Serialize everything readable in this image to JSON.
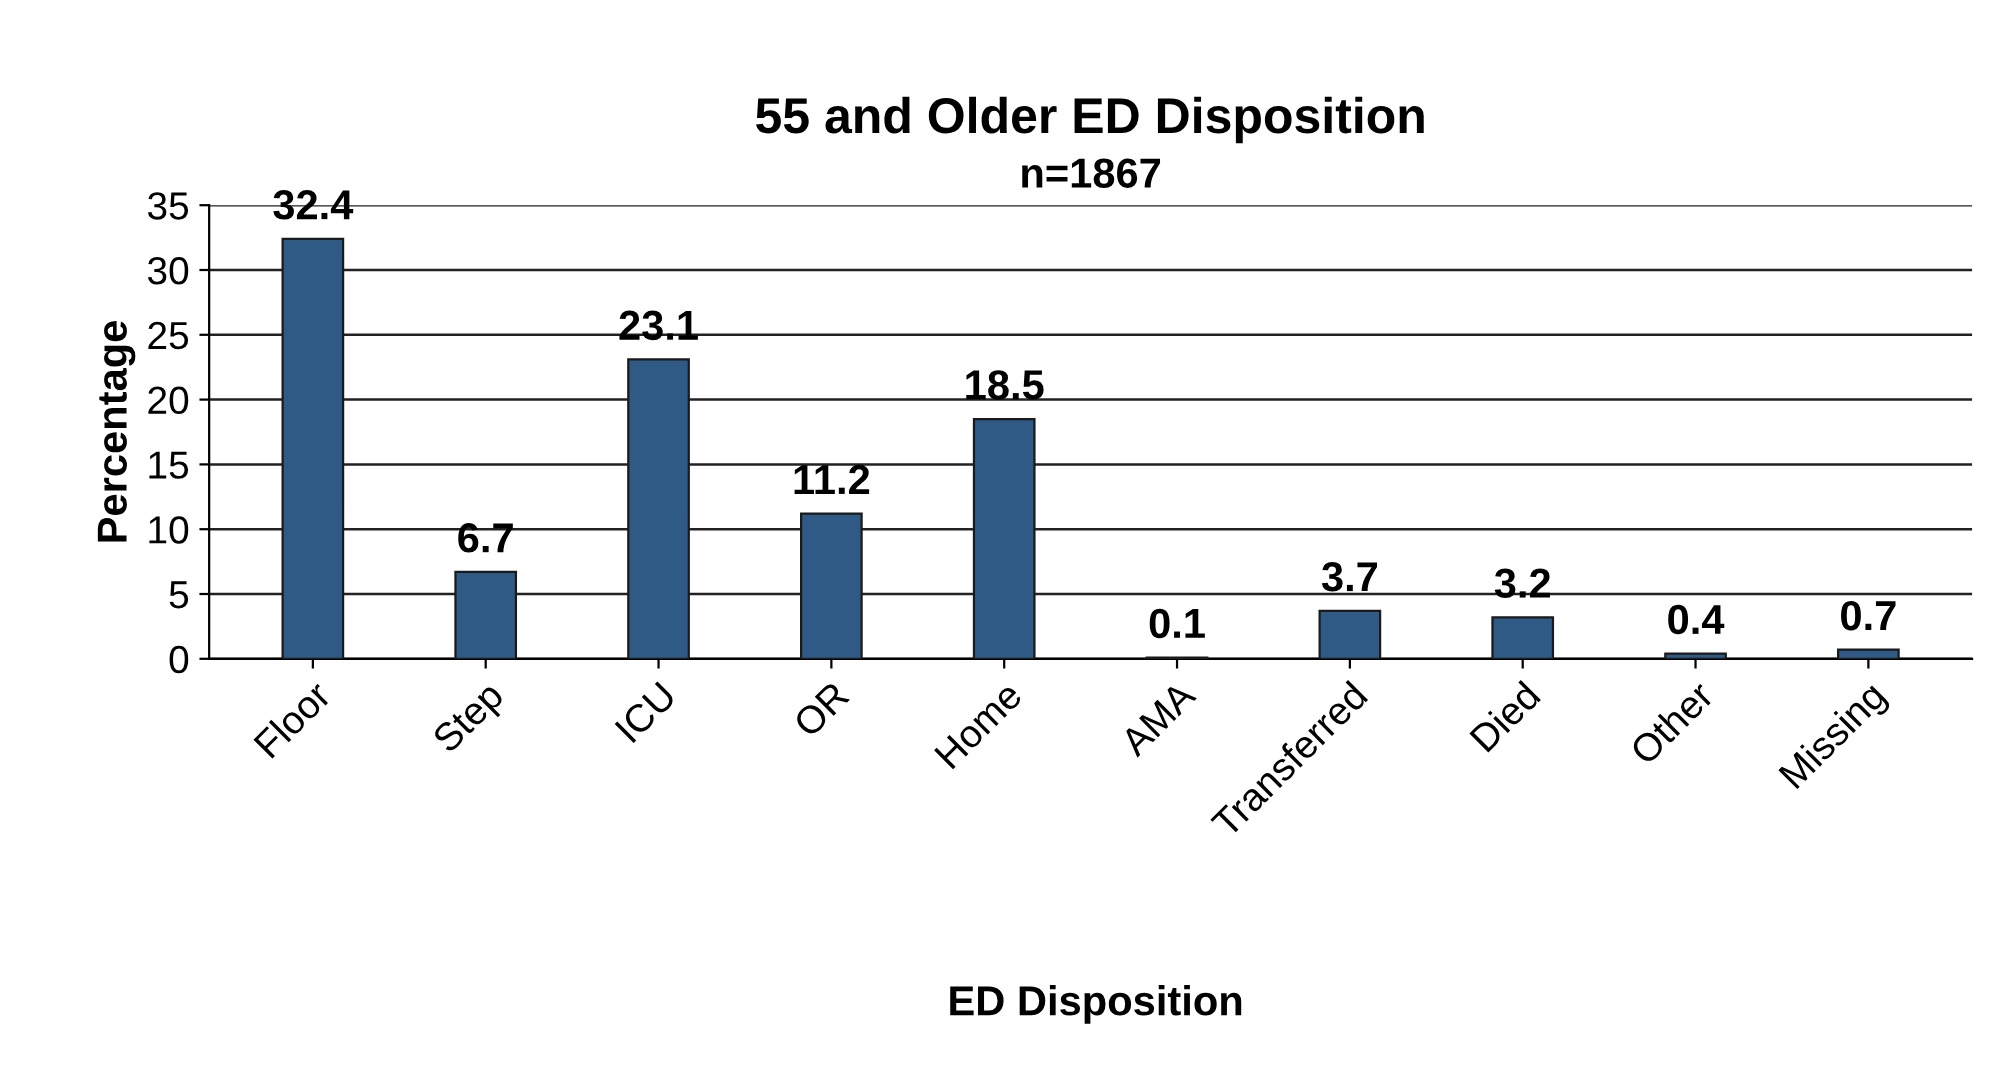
{
  "chart_data": {
    "type": "bar",
    "title": "55 and Older ED Disposition",
    "xlabel": "ED Disposition",
    "ylabel": "Percentage",
    "categories": [
      "Floor",
      "Step",
      "ICU",
      "OR",
      "Home",
      "AMA",
      "Transferred",
      "Died",
      "Other",
      "Missing"
    ],
    "values": [
      32.4,
      6.7,
      23.1,
      11.2,
      18.5,
      0.1,
      3.7,
      3.2,
      0.4,
      0.7
    ],
    "color": "#2f5a85",
    "ylim": [
      0,
      35
    ],
    "yticks": [
      0,
      5,
      10,
      15,
      20,
      25,
      30,
      35
    ],
    "grid": "y",
    "data_labels": true,
    "annotations": [
      "n=1867"
    ]
  }
}
